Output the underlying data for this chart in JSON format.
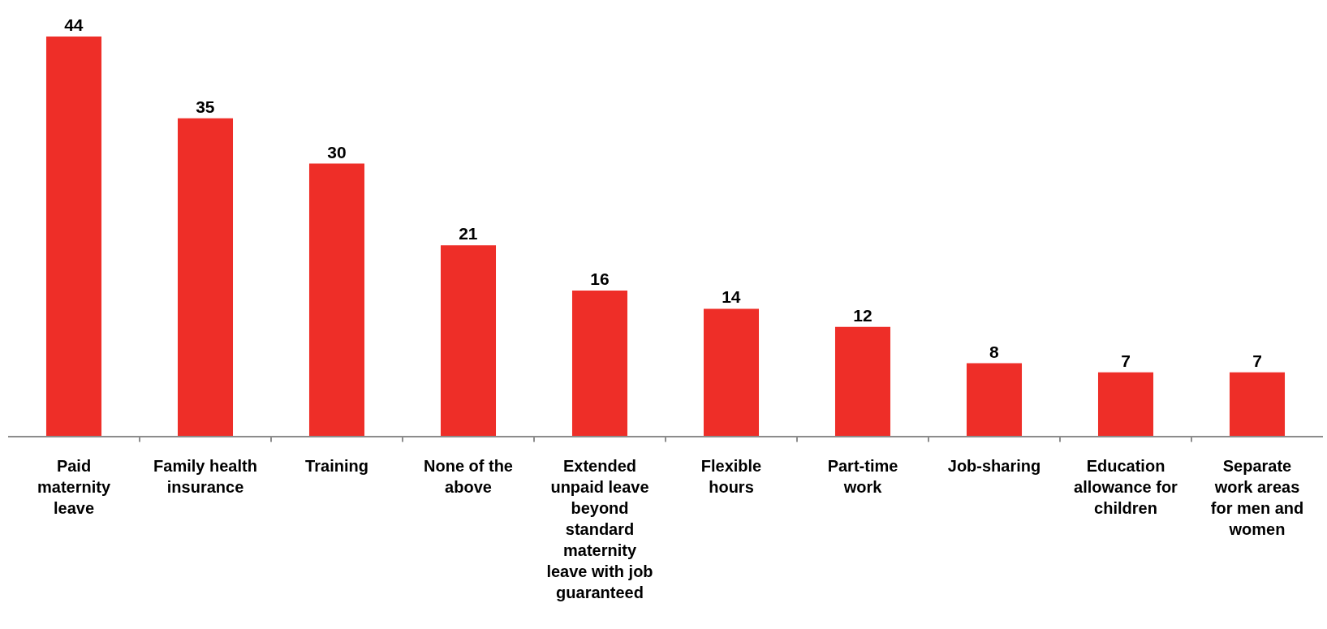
{
  "chart_data": {
    "type": "bar",
    "categories": [
      "Paid\nmaternity\nleave",
      "Family health\ninsurance",
      "Training",
      "None of the\nabove",
      "Extended\nunpaid leave\nbeyond\nstandard\nmaternity\nleave with job\nguaranteed",
      "Flexible\nhours",
      "Part-time\nwork",
      "Job-sharing",
      "Education\nallowance for\nchildren",
      "Separate\nwork areas\nfor men and\nwomen"
    ],
    "values": [
      44,
      35,
      30,
      21,
      16,
      14,
      12,
      8,
      7,
      7
    ],
    "color": "#ee2e28",
    "data_labels": true
  }
}
